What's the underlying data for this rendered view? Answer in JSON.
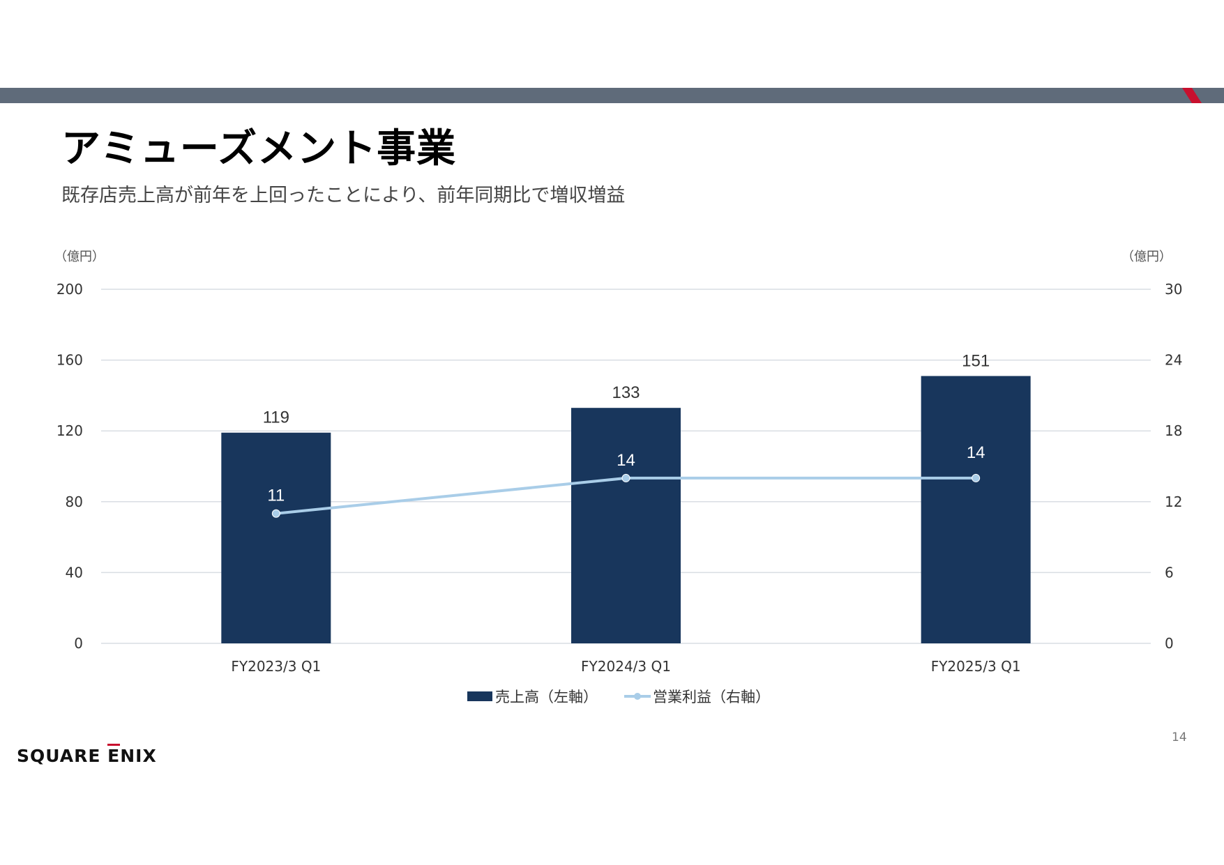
{
  "slide": {
    "title": "アミューズメント事業",
    "subtitle": "既存店売上高が前年を上回ったことにより、前年同期比で増収増益",
    "page_number": "14",
    "logo_text_a": "SQUARE ",
    "logo_text_e": "E",
    "logo_text_b": "NIX"
  },
  "colors": {
    "band": "#5f6b7a",
    "accent": "#c8102e",
    "bar": "#18365c",
    "line": "#a9cde8",
    "grid": "#d9dde3"
  },
  "chart_data": {
    "type": "bar",
    "categories": [
      "FY2023/3 Q1",
      "FY2024/3 Q1",
      "FY2025/3 Q1"
    ],
    "series": [
      {
        "name": "売上高（左軸）",
        "type": "bar",
        "axis": "left",
        "values": [
          119,
          133,
          151
        ]
      },
      {
        "name": "営業利益（右軸）",
        "type": "line",
        "axis": "right",
        "values": [
          11,
          14,
          14
        ]
      }
    ],
    "y_left": {
      "label": "（億円）",
      "min": 0,
      "max": 200,
      "ticks": [
        0,
        40,
        80,
        120,
        160,
        200
      ]
    },
    "y_right": {
      "label": "（億円）",
      "min": 0,
      "max": 30,
      "ticks": [
        0,
        6,
        12,
        18,
        24,
        30
      ]
    },
    "grid": true,
    "legend": "bottom"
  }
}
